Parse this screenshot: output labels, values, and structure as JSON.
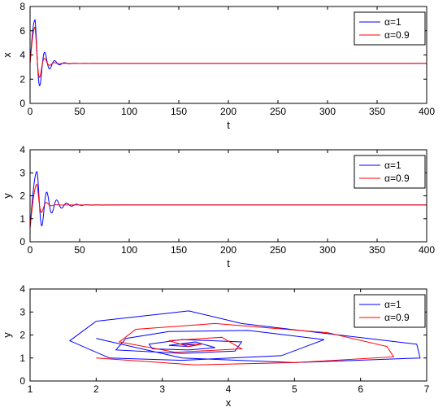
{
  "colors": {
    "alpha1": "#0000ff",
    "alpha09": "#ff0000",
    "axis": "#000000",
    "background": "#ffffff"
  },
  "legend_entries": [
    {
      "label": "α=1",
      "color": "#0000ff"
    },
    {
      "label": "α=0.9",
      "color": "#ff0000"
    }
  ],
  "chart_data": [
    {
      "type": "line",
      "xlabel": "t",
      "ylabel": "x",
      "xlim": [
        0,
        400
      ],
      "ylim": [
        0,
        8
      ],
      "xticks": [
        "0",
        "50",
        "100",
        "150",
        "200",
        "250",
        "300",
        "350",
        "400"
      ],
      "yticks": [
        "0",
        "2",
        "4",
        "6",
        "8"
      ],
      "grid": false,
      "legend": "top-right",
      "series": [
        {
          "name": "α=1",
          "color": "#0000ff",
          "model": "damped-oscillation",
          "equilibrium": 3.3,
          "first_peak": {
            "t": 5,
            "value": 6.9
          },
          "first_trough": {
            "t": 10,
            "value": 1.5
          },
          "period": 10,
          "settled_by_t": 200
        },
        {
          "name": "α=0.9",
          "color": "#ff0000",
          "model": "damped-oscillation",
          "equilibrium": 3.3,
          "first_peak": {
            "t": 5,
            "value": 6.3
          },
          "first_trough": {
            "t": 10,
            "value": 2.2
          },
          "period": 10,
          "settled_by_t": 50
        }
      ]
    },
    {
      "type": "line",
      "xlabel": "t",
      "ylabel": "y",
      "xlim": [
        0,
        400
      ],
      "ylim": [
        0,
        4
      ],
      "xticks": [
        "0",
        "50",
        "100",
        "150",
        "200",
        "250",
        "300",
        "350",
        "400"
      ],
      "yticks": [
        "0",
        "1",
        "2",
        "3",
        "4"
      ],
      "grid": false,
      "legend": "top-right",
      "series": [
        {
          "name": "α=1",
          "color": "#0000ff",
          "model": "damped-oscillation",
          "equilibrium": 1.6,
          "start": 0.6,
          "first_peak": {
            "t": 7,
            "value": 3.05
          },
          "first_trough": {
            "t": 12,
            "value": 0.7
          },
          "period": 10,
          "settled_by_t": 200
        },
        {
          "name": "α=0.9",
          "color": "#ff0000",
          "model": "damped-oscillation",
          "equilibrium": 1.6,
          "start": 0.6,
          "first_peak": {
            "t": 7,
            "value": 2.5
          },
          "first_trough": {
            "t": 12,
            "value": 1.3
          },
          "period": 10,
          "settled_by_t": 50
        }
      ]
    },
    {
      "type": "line",
      "xlabel": "x",
      "ylabel": "y",
      "xlim": [
        1,
        7
      ],
      "ylim": [
        0,
        4
      ],
      "xticks": [
        "1",
        "2",
        "3",
        "4",
        "5",
        "6",
        "7"
      ],
      "yticks": [
        "0",
        "1",
        "2",
        "3",
        "4"
      ],
      "grid": false,
      "legend": "top-right",
      "series": [
        {
          "name": "α=1",
          "color": "#0000ff",
          "model": "phase-spiral",
          "points": [
            [
              2.0,
              1.85
            ],
            [
              3.3,
              1.0
            ],
            [
              5.0,
              0.8
            ],
            [
              6.9,
              1.0
            ],
            [
              6.85,
              1.6
            ],
            [
              4.2,
              2.5
            ],
            [
              3.4,
              3.05
            ],
            [
              2.0,
              2.6
            ],
            [
              1.6,
              1.75
            ],
            [
              2.2,
              1.0
            ],
            [
              3.3,
              0.9
            ],
            [
              4.8,
              1.1
            ],
            [
              5.45,
              1.8
            ],
            [
              4.3,
              2.2
            ],
            [
              3.1,
              2.15
            ],
            [
              2.45,
              1.85
            ],
            [
              2.3,
              1.35
            ],
            [
              3.3,
              1.2
            ],
            [
              4.1,
              1.3
            ],
            [
              4.2,
              1.7
            ],
            [
              3.3,
              1.8
            ],
            [
              2.8,
              1.6
            ],
            [
              2.85,
              1.4
            ],
            [
              3.4,
              1.35
            ],
            [
              3.8,
              1.45
            ],
            [
              3.5,
              1.7
            ],
            [
              3.1,
              1.55
            ],
            [
              3.4,
              1.5
            ],
            [
              3.5,
              1.55
            ],
            [
              3.3,
              1.6
            ]
          ]
        },
        {
          "name": "α=0.9",
          "color": "#ff0000",
          "model": "phase-spiral",
          "points": [
            [
              2.0,
              1.0
            ],
            [
              3.5,
              0.7
            ],
            [
              5.0,
              0.8
            ],
            [
              6.5,
              1.05
            ],
            [
              6.4,
              1.5
            ],
            [
              5.5,
              2.1
            ],
            [
              3.8,
              2.5
            ],
            [
              2.6,
              2.25
            ],
            [
              2.35,
              1.7
            ],
            [
              3.2,
              1.25
            ],
            [
              4.2,
              1.4
            ],
            [
              3.9,
              1.9
            ],
            [
              3.1,
              1.75
            ],
            [
              3.4,
              1.5
            ],
            [
              3.6,
              1.6
            ],
            [
              3.35,
              1.6
            ]
          ]
        }
      ]
    }
  ]
}
